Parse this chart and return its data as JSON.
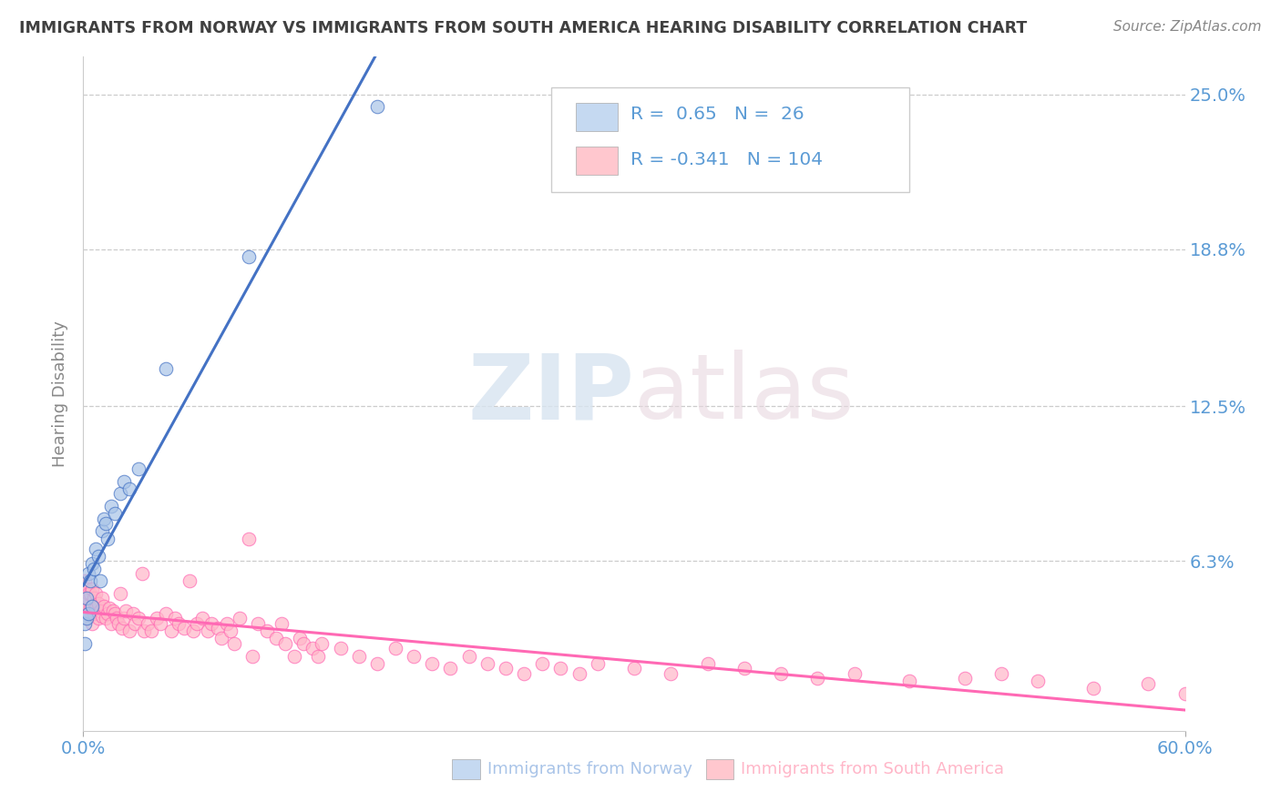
{
  "title": "IMMIGRANTS FROM NORWAY VS IMMIGRANTS FROM SOUTH AMERICA HEARING DISABILITY CORRELATION CHART",
  "source": "Source: ZipAtlas.com",
  "xlabel_norway": "Immigrants from Norway",
  "xlabel_south_america": "Immigrants from South America",
  "ylabel": "Hearing Disability",
  "norway_R": 0.65,
  "norway_N": 26,
  "south_america_R": -0.341,
  "south_america_N": 104,
  "norway_line_color": "#4472c4",
  "south_america_line_color": "#ff69b4",
  "norway_scatter_color": "#a9c4e8",
  "norway_scatter_edge": "#4472c4",
  "south_america_scatter_color": "#ffb6c8",
  "south_america_scatter_edge": "#ff69b4",
  "xlim": [
    0.0,
    0.6
  ],
  "ylim": [
    -0.005,
    0.265
  ],
  "yticks": [
    0.0,
    0.063,
    0.125,
    0.188,
    0.25
  ],
  "ytick_labels": [
    "",
    "6.3%",
    "12.5%",
    "18.8%",
    "25.0%"
  ],
  "xticks": [
    0.0,
    0.6
  ],
  "xtick_labels": [
    "0.0%",
    "60.0%"
  ],
  "norway_x": [
    0.001,
    0.001,
    0.002,
    0.002,
    0.003,
    0.003,
    0.004,
    0.005,
    0.005,
    0.006,
    0.007,
    0.008,
    0.009,
    0.01,
    0.011,
    0.012,
    0.013,
    0.015,
    0.017,
    0.02,
    0.022,
    0.025,
    0.03,
    0.045,
    0.09,
    0.16
  ],
  "norway_y": [
    0.03,
    0.038,
    0.04,
    0.048,
    0.042,
    0.058,
    0.055,
    0.045,
    0.062,
    0.06,
    0.068,
    0.065,
    0.055,
    0.075,
    0.08,
    0.078,
    0.072,
    0.085,
    0.082,
    0.09,
    0.095,
    0.092,
    0.1,
    0.14,
    0.185,
    0.245
  ],
  "south_america_x": [
    0.001,
    0.001,
    0.002,
    0.002,
    0.002,
    0.003,
    0.003,
    0.003,
    0.004,
    0.004,
    0.005,
    0.005,
    0.005,
    0.006,
    0.006,
    0.007,
    0.007,
    0.008,
    0.008,
    0.009,
    0.01,
    0.01,
    0.011,
    0.012,
    0.013,
    0.014,
    0.015,
    0.016,
    0.017,
    0.018,
    0.019,
    0.02,
    0.021,
    0.022,
    0.023,
    0.025,
    0.027,
    0.028,
    0.03,
    0.032,
    0.033,
    0.035,
    0.037,
    0.04,
    0.042,
    0.045,
    0.048,
    0.05,
    0.052,
    0.055,
    0.058,
    0.06,
    0.062,
    0.065,
    0.068,
    0.07,
    0.073,
    0.075,
    0.078,
    0.08,
    0.082,
    0.085,
    0.09,
    0.092,
    0.095,
    0.1,
    0.105,
    0.108,
    0.11,
    0.115,
    0.118,
    0.12,
    0.125,
    0.128,
    0.13,
    0.14,
    0.15,
    0.16,
    0.17,
    0.18,
    0.19,
    0.2,
    0.21,
    0.22,
    0.23,
    0.24,
    0.25,
    0.26,
    0.27,
    0.28,
    0.3,
    0.32,
    0.34,
    0.36,
    0.38,
    0.4,
    0.42,
    0.45,
    0.48,
    0.5,
    0.52,
    0.55,
    0.58,
    0.6
  ],
  "south_america_y": [
    0.048,
    0.055,
    0.04,
    0.045,
    0.052,
    0.042,
    0.048,
    0.05,
    0.044,
    0.05,
    0.038,
    0.045,
    0.052,
    0.042,
    0.048,
    0.044,
    0.05,
    0.04,
    0.046,
    0.043,
    0.041,
    0.048,
    0.045,
    0.04,
    0.042,
    0.044,
    0.038,
    0.043,
    0.042,
    0.04,
    0.038,
    0.05,
    0.036,
    0.04,
    0.043,
    0.035,
    0.042,
    0.038,
    0.04,
    0.058,
    0.035,
    0.038,
    0.035,
    0.04,
    0.038,
    0.042,
    0.035,
    0.04,
    0.038,
    0.036,
    0.055,
    0.035,
    0.038,
    0.04,
    0.035,
    0.038,
    0.036,
    0.032,
    0.038,
    0.035,
    0.03,
    0.04,
    0.072,
    0.025,
    0.038,
    0.035,
    0.032,
    0.038,
    0.03,
    0.025,
    0.032,
    0.03,
    0.028,
    0.025,
    0.03,
    0.028,
    0.025,
    0.022,
    0.028,
    0.025,
    0.022,
    0.02,
    0.025,
    0.022,
    0.02,
    0.018,
    0.022,
    0.02,
    0.018,
    0.022,
    0.02,
    0.018,
    0.022,
    0.02,
    0.018,
    0.016,
    0.018,
    0.015,
    0.016,
    0.018,
    0.015,
    0.012,
    0.014,
    0.01
  ],
  "watermark_zip": "ZIP",
  "watermark_atlas": "atlas",
  "background_color": "#ffffff",
  "grid_color": "#cccccc",
  "tick_color": "#5b9bd5",
  "title_color": "#404040",
  "legend_box_norway_color": "#c5d9f1",
  "legend_box_south_america_color": "#ffc7ce"
}
